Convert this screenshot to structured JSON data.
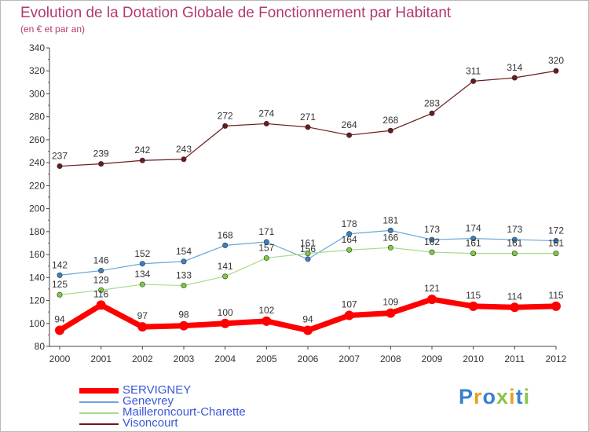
{
  "title": "Evolution de la Dotation Globale de Fonctionnement par Habitant",
  "subtitle": "(en € et par an)",
  "logo": {
    "text": "Proxiti",
    "colors": [
      "#3a7fd0",
      "#e8a020",
      "#3a7fd0",
      "#8bc34a",
      "#e8a020",
      "#3a7fd0",
      "#8bc34a"
    ]
  },
  "chart_data": {
    "type": "line",
    "x": [
      "2000",
      "2001",
      "2002",
      "2003",
      "2004",
      "2005",
      "2006",
      "2007",
      "2008",
      "2009",
      "2010",
      "2011",
      "2012"
    ],
    "yticks": [
      "80",
      "100",
      "120",
      "140",
      "160",
      "180",
      "200",
      "220",
      "240",
      "260",
      "280",
      "300",
      "320",
      "340"
    ],
    "ylim": [
      80,
      340
    ],
    "grid": false,
    "legend_position": "bottom-left",
    "series": [
      {
        "name": "Visoncourt",
        "color": "#6b1a1a",
        "marker": "#6b1a1a",
        "width": 1.2,
        "values": [
          237,
          239,
          242,
          243,
          272,
          274,
          271,
          264,
          268,
          283,
          311,
          314,
          320
        ],
        "labels": [
          "237",
          "239",
          "242",
          "243",
          "272",
          "274",
          "271",
          "264",
          "268",
          "283",
          "311",
          "314",
          "320"
        ]
      },
      {
        "name": "Genevrey",
        "color": "#6aa6d6",
        "marker": "#3b82c4",
        "width": 1.2,
        "values": [
          142,
          146,
          152,
          154,
          168,
          171,
          156,
          178,
          181,
          173,
          174,
          173,
          172
        ],
        "labels": [
          "142",
          "146",
          "152",
          "154",
          "168",
          "171",
          "156",
          "178",
          "181",
          "173",
          "174",
          "173",
          "172"
        ]
      },
      {
        "name": "Mailleroncourt-Charette",
        "color": "#a6dc8a",
        "marker": "#7ccd3c",
        "width": 1.2,
        "values": [
          125,
          129,
          134,
          133,
          141,
          157,
          161,
          164,
          166,
          162,
          161,
          161,
          161
        ],
        "labels": [
          "125",
          "129",
          "134",
          "133",
          "141",
          "157",
          "161",
          "164",
          "166",
          "162",
          "161",
          "161",
          "161"
        ]
      },
      {
        "name": "SERVIGNEY",
        "color": "#ff0000",
        "marker": "#ff0000",
        "width": 7,
        "values": [
          94,
          116,
          97,
          98,
          100,
          102,
          94,
          107,
          109,
          121,
          115,
          114,
          115
        ],
        "labels": [
          "94",
          "116",
          "97",
          "98",
          "100",
          "102",
          "94",
          "107",
          "109",
          "121",
          "115",
          "114",
          "115"
        ]
      }
    ]
  },
  "legend": [
    {
      "name": "SERVIGNEY",
      "color": "#ff0000",
      "text_color": "#3a57d6",
      "thick": true
    },
    {
      "name": "Genevrey",
      "color": "#6aa6d6",
      "text_color": "#3a57d6",
      "thick": false
    },
    {
      "name": "Mailleroncourt-Charette",
      "color": "#a6dc8a",
      "text_color": "#3a57d6",
      "thick": false
    },
    {
      "name": "Visoncourt",
      "color": "#6b1a1a",
      "text_color": "#3a57d6",
      "thick": false
    }
  ]
}
